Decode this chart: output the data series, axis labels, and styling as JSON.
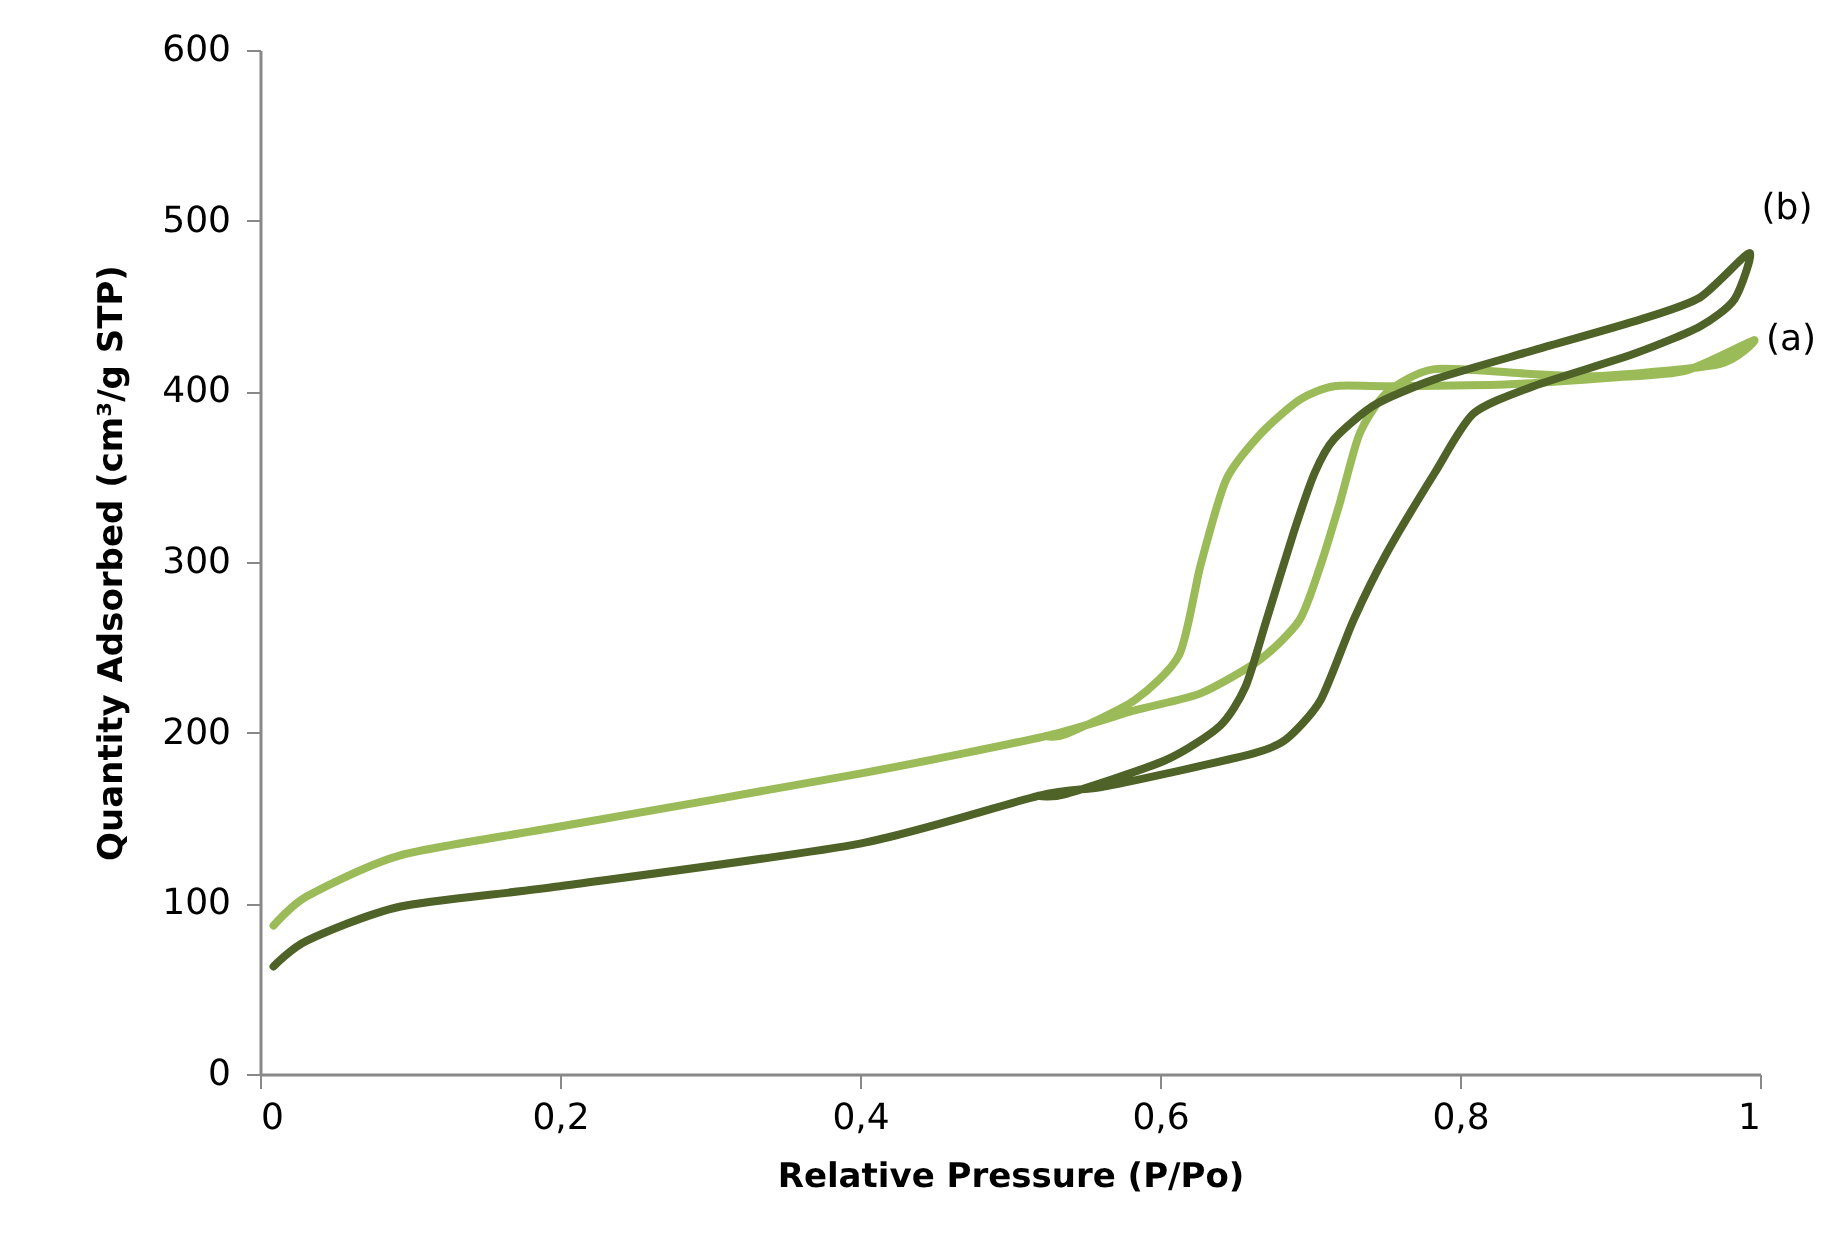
{
  "chart_data": {
    "type": "line",
    "xlabel": "Relative Pressure (P/Po)",
    "ylabel": "Quantity Adsorbed (cm³/g STP)",
    "xlim": [
      0,
      1
    ],
    "ylim": [
      0,
      600
    ],
    "xticks": [
      0,
      {
        "value": 0.2,
        "label": "0,2"
      },
      {
        "value": 0.4,
        "label": "0,4"
      },
      {
        "value": 0.6,
        "label": "0,6"
      },
      {
        "value": 0.8,
        "label": "0,8"
      },
      1
    ],
    "yticks": [
      0,
      100,
      200,
      300,
      400,
      500,
      600
    ],
    "grid": false,
    "legend": false,
    "marker": "none",
    "line_style": "solid",
    "series": [
      {
        "name": "(a)",
        "color": "#9bbb59",
        "x": [
          0.009,
          0.031,
          0.093,
          0.2,
          0.4,
          0.524,
          0.583,
          0.627,
          0.667,
          0.693,
          0.707,
          0.72,
          0.733,
          0.751,
          0.783,
          0.85,
          0.893,
          0.973,
          0.996,
          0.95,
          0.9,
          0.83,
          0.751,
          0.716,
          0.693,
          0.667,
          0.644,
          0.627,
          0.613,
          0.583,
          0.537,
          0.524
        ],
        "values": [
          87,
          104,
          128,
          145,
          176,
          198,
          213,
          223,
          243,
          266,
          298,
          335,
          375,
          399,
          413,
          410,
          409,
          416,
          430,
          412,
          408,
          404,
          403,
          403,
          395,
          375,
          348,
          298,
          246,
          219,
          199,
          198
        ]
      },
      {
        "name": "(b)",
        "color": "#4f6228",
        "x": [
          0.009,
          0.031,
          0.093,
          0.2,
          0.4,
          0.519,
          0.56,
          0.604,
          0.663,
          0.684,
          0.707,
          0.729,
          0.751,
          0.783,
          0.809,
          0.849,
          0.916,
          0.96,
          0.983,
          0.993,
          0.96,
          0.92,
          0.849,
          0.783,
          0.743,
          0.716,
          0.703,
          0.689,
          0.671,
          0.657,
          0.64,
          0.604,
          0.537,
          0.519
        ],
        "values": [
          63,
          78,
          98,
          110,
          135,
          163,
          168,
          176,
          188,
          196,
          219,
          266,
          305,
          352,
          387,
          403,
          422,
          438,
          454,
          481,
          455,
          442,
          424,
          407,
          392,
          372,
          352,
          317,
          266,
          227,
          204,
          184,
          164,
          163
        ]
      }
    ]
  }
}
